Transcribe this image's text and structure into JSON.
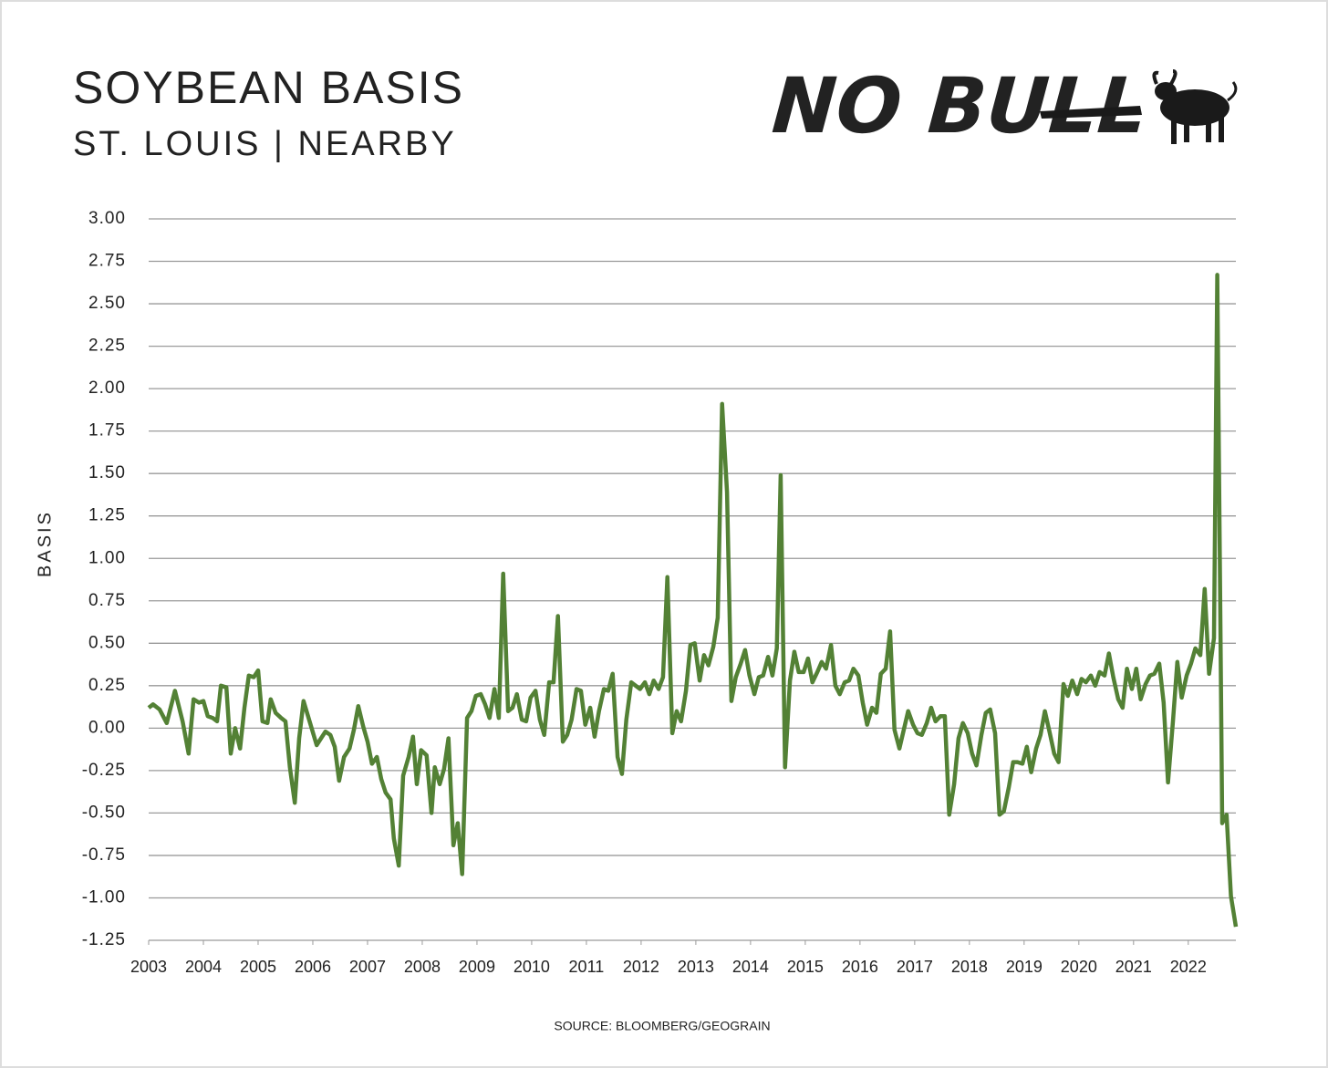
{
  "logo": "NO BULL",
  "chart_data": {
    "type": "line",
    "title": "SOYBEAN BASIS",
    "subtitle": "ST. LOUIS | NEARBY",
    "y_label": "BASIS",
    "source": "SOURCE: BLOOMBERG/GEOGRAIN",
    "color": "#538135",
    "grid": true,
    "xlim": [
      2003,
      2022.87
    ],
    "xticks": [
      2003,
      2004,
      2005,
      2006,
      2007,
      2008,
      2009,
      2010,
      2011,
      2012,
      2013,
      2014,
      2015,
      2016,
      2017,
      2018,
      2019,
      2020,
      2021,
      2022
    ],
    "ylim": [
      -1.25,
      3.0
    ],
    "yticks": [
      {
        "value": 3,
        "label": "3.00"
      },
      2.75,
      {
        "value": 2.5,
        "label": "2.50"
      },
      2.25,
      {
        "value": 2,
        "label": "2.00"
      },
      1.75,
      {
        "value": 1.5,
        "label": "1.50"
      },
      1.25,
      {
        "value": 1,
        "label": "1.00"
      },
      0.75,
      {
        "value": 0.5,
        "label": "0.50"
      },
      0.25,
      {
        "value": 0,
        "label": "0.00"
      },
      -0.25,
      {
        "value": -0.5,
        "label": "-0.50"
      },
      -0.75,
      {
        "value": -1,
        "label": "-1.00"
      },
      -1.25
    ],
    "x": [
      2003.0,
      2003.08,
      2003.2,
      2003.33,
      2003.48,
      2003.62,
      2003.73,
      2003.82,
      2003.92,
      2004.0,
      2004.08,
      2004.17,
      2004.25,
      2004.32,
      2004.42,
      2004.5,
      2004.58,
      2004.67,
      2004.75,
      2004.83,
      2004.92,
      2005.0,
      2005.08,
      2005.17,
      2005.23,
      2005.32,
      2005.42,
      2005.5,
      2005.58,
      2005.67,
      2005.75,
      2005.83,
      2005.95,
      2006.07,
      2006.15,
      2006.23,
      2006.32,
      2006.4,
      2006.48,
      2006.57,
      2006.67,
      2006.75,
      2006.83,
      2006.92,
      2007.0,
      2007.08,
      2007.17,
      2007.25,
      2007.33,
      2007.42,
      2007.48,
      2007.57,
      2007.65,
      2007.75,
      2007.83,
      2007.9,
      2007.98,
      2008.08,
      2008.17,
      2008.23,
      2008.32,
      2008.4,
      2008.48,
      2008.57,
      2008.65,
      2008.73,
      2008.82,
      2008.9,
      2008.98,
      2009.07,
      2009.15,
      2009.23,
      2009.32,
      2009.4,
      2009.48,
      2009.57,
      2009.65,
      2009.73,
      2009.82,
      2009.9,
      2009.98,
      2010.07,
      2010.15,
      2010.23,
      2010.32,
      2010.4,
      2010.48,
      2010.57,
      2010.65,
      2010.73,
      2010.82,
      2010.9,
      2010.98,
      2011.07,
      2011.15,
      2011.23,
      2011.32,
      2011.4,
      2011.48,
      2011.57,
      2011.65,
      2011.73,
      2011.82,
      2011.9,
      2011.98,
      2012.07,
      2012.15,
      2012.23,
      2012.32,
      2012.4,
      2012.48,
      2012.57,
      2012.65,
      2012.73,
      2012.82,
      2012.9,
      2012.98,
      2013.07,
      2013.15,
      2013.23,
      2013.32,
      2013.4,
      2013.48,
      2013.57,
      2013.65,
      2013.73,
      2013.82,
      2013.9,
      2013.98,
      2014.07,
      2014.15,
      2014.23,
      2014.32,
      2014.4,
      2014.48,
      2014.55,
      2014.63,
      2014.72,
      2014.8,
      2014.88,
      2014.97,
      2015.05,
      2015.13,
      2015.22,
      2015.3,
      2015.38,
      2015.47,
      2015.55,
      2015.63,
      2015.72,
      2015.8,
      2015.88,
      2015.97,
      2016.05,
      2016.13,
      2016.22,
      2016.3,
      2016.38,
      2016.47,
      2016.55,
      2016.63,
      2016.72,
      2016.8,
      2016.88,
      2016.97,
      2017.05,
      2017.13,
      2017.22,
      2017.3,
      2017.38,
      2017.47,
      2017.55,
      2017.63,
      2017.72,
      2017.8,
      2017.88,
      2017.97,
      2018.05,
      2018.13,
      2018.22,
      2018.3,
      2018.38,
      2018.47,
      2018.55,
      2018.63,
      2018.72,
      2018.8,
      2018.88,
      2018.97,
      2019.05,
      2019.13,
      2019.22,
      2019.3,
      2019.38,
      2019.47,
      2019.55,
      2019.63,
      2019.72,
      2019.8,
      2019.88,
      2019.97,
      2020.05,
      2020.13,
      2020.22,
      2020.3,
      2020.38,
      2020.47,
      2020.55,
      2020.63,
      2020.72,
      2020.8,
      2020.88,
      2020.97,
      2021.05,
      2021.13,
      2021.22,
      2021.3,
      2021.38,
      2021.47,
      2021.55,
      2021.63,
      2021.72,
      2021.8,
      2021.88,
      2021.97,
      2022.05,
      2022.13,
      2022.22,
      2022.3,
      2022.38,
      2022.47,
      2022.53,
      2022.62,
      2022.7,
      2022.78,
      2022.87
    ],
    "values": [
      0.12,
      0.14,
      0.11,
      0.03,
      0.22,
      0.04,
      -0.15,
      0.17,
      0.15,
      0.16,
      0.07,
      0.06,
      0.04,
      0.25,
      0.24,
      -0.15,
      0.0,
      -0.12,
      0.12,
      0.31,
      0.3,
      0.34,
      0.04,
      0.03,
      0.17,
      0.09,
      0.06,
      0.04,
      -0.23,
      -0.44,
      -0.06,
      0.16,
      0.03,
      -0.1,
      -0.06,
      -0.02,
      -0.04,
      -0.11,
      -0.31,
      -0.17,
      -0.12,
      -0.01,
      0.13,
      0.01,
      -0.08,
      -0.21,
      -0.17,
      -0.3,
      -0.38,
      -0.42,
      -0.65,
      -0.81,
      -0.28,
      -0.17,
      -0.05,
      -0.33,
      -0.13,
      -0.16,
      -0.5,
      -0.23,
      -0.33,
      -0.24,
      -0.06,
      -0.69,
      -0.56,
      -0.86,
      0.06,
      0.1,
      0.19,
      0.2,
      0.14,
      0.06,
      0.23,
      0.06,
      0.91,
      0.1,
      0.12,
      0.2,
      0.05,
      0.04,
      0.18,
      0.22,
      0.05,
      -0.04,
      0.27,
      0.27,
      0.66,
      -0.08,
      -0.04,
      0.05,
      0.23,
      0.22,
      0.02,
      0.12,
      -0.05,
      0.1,
      0.23,
      0.22,
      0.32,
      -0.17,
      -0.27,
      0.05,
      0.27,
      0.25,
      0.23,
      0.27,
      0.2,
      0.28,
      0.23,
      0.3,
      0.89,
      -0.03,
      0.1,
      0.04,
      0.22,
      0.49,
      0.5,
      0.28,
      0.43,
      0.37,
      0.48,
      0.65,
      1.91,
      1.39,
      0.16,
      0.3,
      0.38,
      0.46,
      0.31,
      0.2,
      0.3,
      0.31,
      0.42,
      0.31,
      0.47,
      1.49,
      -0.23,
      0.28,
      0.45,
      0.33,
      0.33,
      0.41,
      0.27,
      0.33,
      0.39,
      0.35,
      0.49,
      0.25,
      0.2,
      0.27,
      0.28,
      0.35,
      0.31,
      0.15,
      0.02,
      0.12,
      0.09,
      0.32,
      0.35,
      0.57,
      -0.01,
      -0.12,
      -0.01,
      0.1,
      0.02,
      -0.03,
      -0.04,
      0.03,
      0.12,
      0.04,
      0.07,
      0.07,
      -0.51,
      -0.33,
      -0.06,
      0.03,
      -0.03,
      -0.15,
      -0.22,
      -0.04,
      0.09,
      0.11,
      -0.03,
      -0.51,
      -0.49,
      -0.35,
      -0.2,
      -0.2,
      -0.21,
      -0.11,
      -0.26,
      -0.12,
      -0.04,
      0.1,
      -0.03,
      -0.15,
      -0.2,
      0.26,
      0.19,
      0.28,
      0.2,
      0.29,
      0.27,
      0.31,
      0.25,
      0.33,
      0.31,
      0.44,
      0.3,
      0.17,
      0.12,
      0.35,
      0.23,
      0.35,
      0.17,
      0.26,
      0.31,
      0.32,
      0.38,
      0.15,
      -0.32,
      0.04,
      0.39,
      0.18,
      0.31,
      0.38,
      0.47,
      0.43,
      0.82,
      0.32,
      0.53,
      2.67,
      -0.56,
      -0.51,
      -0.99,
      -1.17
    ]
  }
}
